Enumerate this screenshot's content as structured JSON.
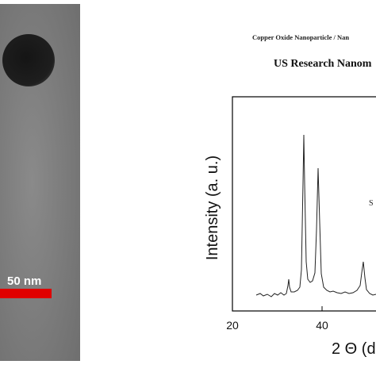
{
  "figure": {
    "tem_image": {
      "scale_bar_label": "50 nm"
    },
    "xrd_plot": {
      "title": "Copper Oxide Nanoparticle / Nan",
      "subtitle": "US Research Nanom",
      "y_label": "Intensity (a. u.)",
      "x_label": "2 Θ (d",
      "x_ticks": [
        "20",
        "40"
      ],
      "annotation": "S"
    }
  }
}
